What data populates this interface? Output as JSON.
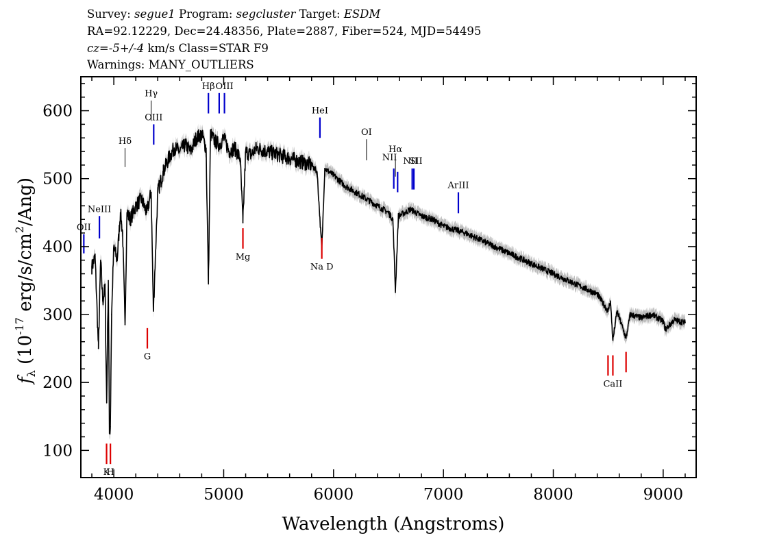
{
  "header": {
    "survey_label": "Survey:",
    "survey": "segue1",
    "program_label": "Program:",
    "program": "segcluster",
    "target_label": "Target:",
    "target": "ESDM",
    "line2": "RA=92.12229, Dec=24.48356, Plate=2887, Fiber=524, MJD=54495",
    "cz_value": "cz=-5+/-4",
    "cz_rest": " km/s Class=STAR F9",
    "warnings": "Warnings: MANY_OUTLIERS"
  },
  "chart_data": {
    "type": "line",
    "xlabel": "Wavelength (Angstroms)",
    "ylabel": "f_λ (10^-17 erg/s/cm²/Ang)",
    "xlim": [
      3700,
      9300
    ],
    "ylim": [
      60,
      650
    ],
    "xticks": [
      4000,
      5000,
      6000,
      7000,
      8000,
      9000
    ],
    "yticks": [
      100,
      200,
      300,
      400,
      500,
      600
    ],
    "colors": {
      "spectrum": "#000000",
      "error_band": "#bdbdbd",
      "emission": "#0000cc",
      "absorption": "#dd0000",
      "sky": "#000000"
    },
    "series": [
      {
        "x": [
          3800,
          3830,
          3860,
          3880,
          3900,
          3920,
          3935,
          3950,
          3960,
          3968,
          3980,
          4000,
          4030,
          4060,
          4080,
          4102,
          4120,
          4150,
          4200,
          4250,
          4300,
          4340,
          4360,
          4400,
          4450,
          4500,
          4550,
          4600,
          4650,
          4700,
          4750,
          4800,
          4840,
          4861,
          4880,
          4920,
          4960,
          5000,
          5050,
          5100,
          5150,
          5175,
          5200,
          5250,
          5300,
          5400,
          5500,
          5600,
          5700,
          5800,
          5850,
          5893,
          5920,
          6000,
          6100,
          6200,
          6300,
          6400,
          6500,
          6540,
          6563,
          6590,
          6650,
          6700,
          6800,
          6900,
          7000,
          7200,
          7400,
          7600,
          7800,
          8000,
          8200,
          8400,
          8498,
          8520,
          8542,
          8580,
          8662,
          8700,
          8800,
          8900,
          9000,
          9020,
          9100,
          9200
        ],
        "y": [
          370,
          385,
          250,
          380,
          320,
          340,
          170,
          350,
          125,
          135,
          300,
          400,
          380,
          450,
          420,
          285,
          450,
          440,
          460,
          470,
          450,
          480,
          305,
          480,
          510,
          530,
          545,
          540,
          550,
          540,
          560,
          565,
          545,
          345,
          565,
          555,
          550,
          560,
          540,
          545,
          530,
          435,
          540,
          535,
          545,
          540,
          535,
          530,
          525,
          520,
          510,
          395,
          515,
          505,
          490,
          480,
          470,
          460,
          450,
          440,
          335,
          445,
          450,
          455,
          445,
          440,
          430,
          420,
          405,
          390,
          375,
          360,
          345,
          330,
          305,
          320,
          262,
          305,
          265,
          300,
          295,
          300,
          290,
          278,
          292,
          288
        ]
      }
    ],
    "line_markers": [
      {
        "label": "OII",
        "x": 3727,
        "y_top": 418,
        "y_bottom": 390,
        "color": "blue",
        "label_pos": "above"
      },
      {
        "label": "NeIII",
        "x": 3869,
        "y_top": 445,
        "y_bottom": 412,
        "color": "blue",
        "label_pos": "above"
      },
      {
        "label": "Hδ",
        "x": 4102,
        "y_top": 545,
        "y_bottom": 517,
        "color": "black",
        "label_pos": "above"
      },
      {
        "label": "Hγ",
        "x": 4340,
        "y_top": 615,
        "y_bottom": 585,
        "color": "black",
        "label_pos": "above"
      },
      {
        "label": "OIII",
        "x": 4363,
        "y_top": 580,
        "y_bottom": 550,
        "color": "blue",
        "label_pos": "above"
      },
      {
        "label": "Hβ",
        "x": 4861,
        "y_top": 626,
        "y_bottom": 596,
        "color": "blue",
        "label_pos": "above"
      },
      {
        "label": "OIII",
        "x": 4959,
        "y_top": 626,
        "y_bottom": 596,
        "color": "blue",
        "label_pos": "none"
      },
      {
        "label": "OIII",
        "x": 5007,
        "y_top": 626,
        "y_bottom": 596,
        "color": "blue",
        "label_pos": "above"
      },
      {
        "label": "HeI",
        "x": 5876,
        "y_top": 590,
        "y_bottom": 560,
        "color": "blue",
        "label_pos": "above"
      },
      {
        "label": "OI",
        "x": 6300,
        "y_top": 558,
        "y_bottom": 527,
        "color": "black",
        "label_pos": "above"
      },
      {
        "label": "NII",
        "x": 6548,
        "y_top": 515,
        "y_bottom": 485,
        "color": "blue",
        "label_pos": "none"
      },
      {
        "label": "Hα",
        "x": 6563,
        "y_top": 533,
        "y_bottom": 503,
        "color": "black",
        "label_pos": "above"
      },
      {
        "label": "NII",
        "x": 6583,
        "y_top": 510,
        "y_bottom": 480,
        "color": "blue",
        "label_pos": "none"
      },
      {
        "label": "SII",
        "x": 6716,
        "y_top": 515,
        "y_bottom": 484,
        "color": "blue",
        "label_pos": "none"
      },
      {
        "label": "SII",
        "x": 6731,
        "y_top": 515,
        "y_bottom": 484,
        "color": "blue",
        "label_pos": "none"
      },
      {
        "label": "NII",
        "x": 6510,
        "y_top": null,
        "y_bottom": null,
        "color": "black",
        "label_pos": "text_only",
        "label_y": 527
      },
      {
        "label": "NII",
        "x": 6700,
        "y_top": null,
        "y_bottom": null,
        "color": "black",
        "label_pos": "text_only",
        "label_y": 522
      },
      {
        "label": "SII",
        "x": 6750,
        "y_top": null,
        "y_bottom": null,
        "color": "black",
        "label_pos": "text_only",
        "label_y": 522
      },
      {
        "label": "ArIII",
        "x": 7136,
        "y_top": 480,
        "y_bottom": 449,
        "color": "blue",
        "label_pos": "above"
      },
      {
        "label": "K",
        "x": 3934,
        "y_top": 110,
        "y_bottom": 80,
        "color": "red",
        "label_pos": "below"
      },
      {
        "label": "H",
        "x": 3969,
        "y_top": 110,
        "y_bottom": 80,
        "color": "red",
        "label_pos": "below"
      },
      {
        "label": "G",
        "x": 4305,
        "y_top": 280,
        "y_bottom": 250,
        "color": "red",
        "label_pos": "below"
      },
      {
        "label": "Mg",
        "x": 5175,
        "y_top": 427,
        "y_bottom": 397,
        "color": "red",
        "label_pos": "below"
      },
      {
        "label": "Na D",
        "x": 5893,
        "y_top": 413,
        "y_bottom": 382,
        "color": "red",
        "label_pos": "below"
      },
      {
        "label": "CaII",
        "x": 8498,
        "y_top": 240,
        "y_bottom": 210,
        "color": "red",
        "label_pos": "none"
      },
      {
        "label": "CaII",
        "x": 8542,
        "y_top": 240,
        "y_bottom": 210,
        "color": "red",
        "label_pos": "below"
      },
      {
        "label": "CaII",
        "x": 8662,
        "y_top": 245,
        "y_bottom": 215,
        "color": "red",
        "label_pos": "none"
      }
    ]
  }
}
